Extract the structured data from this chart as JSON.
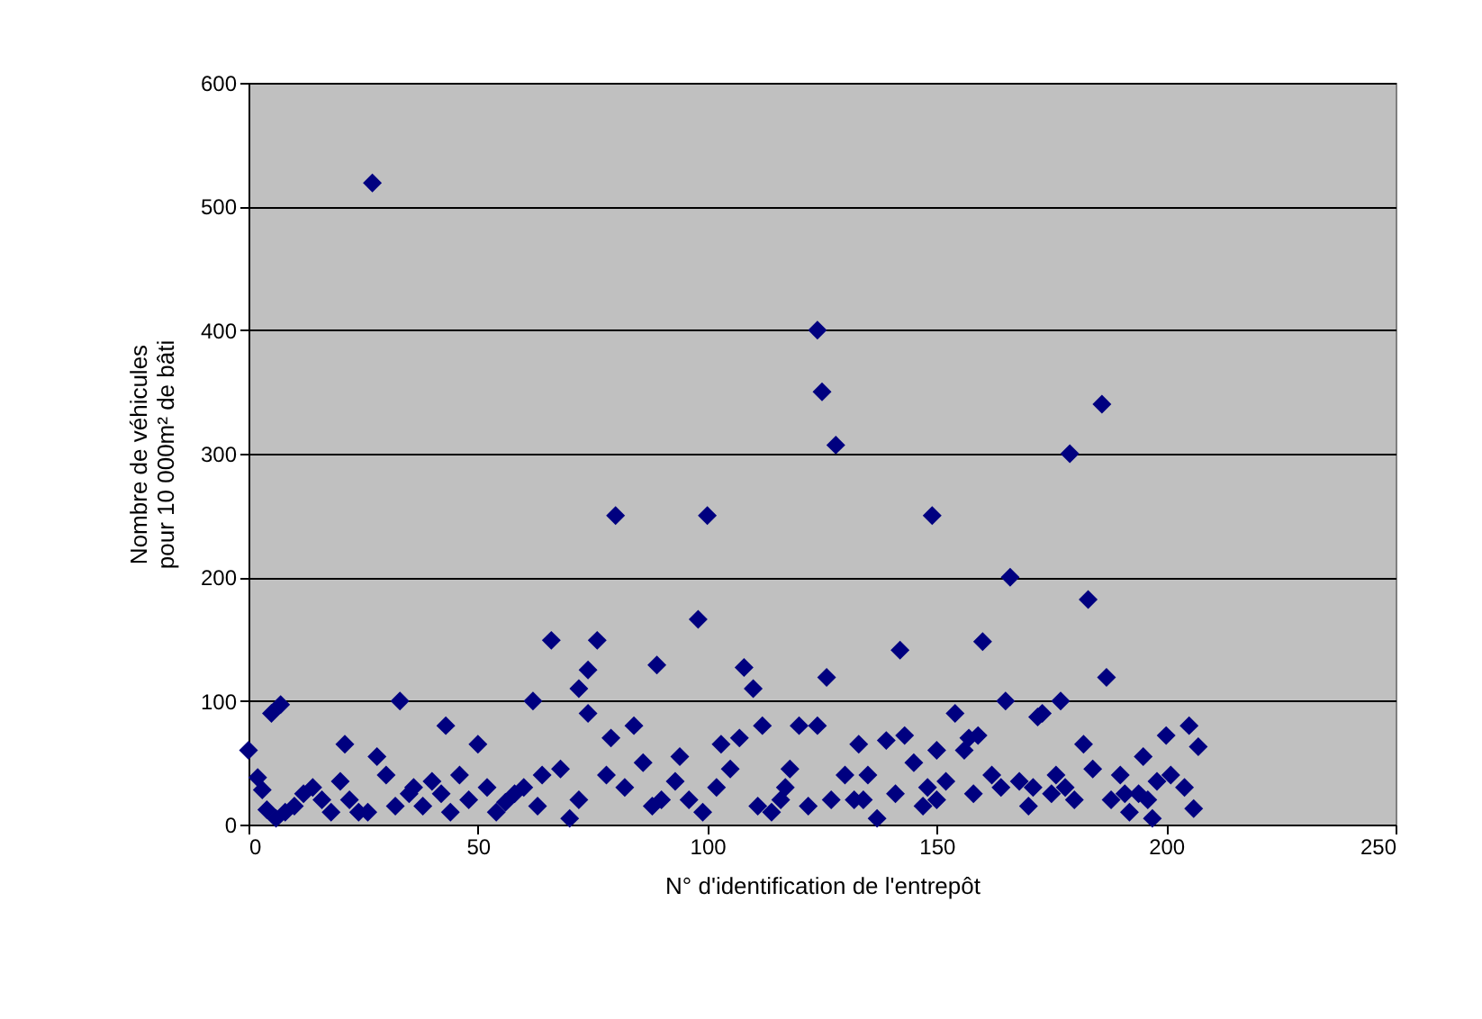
{
  "chart_data": {
    "type": "scatter",
    "xlabel": "N° d'identification de l'entrepôt",
    "ylabel": "Nombre de véhicules pour 10 000m² de bâti",
    "x": [
      27,
      80,
      100,
      124,
      125,
      128,
      149,
      166,
      179,
      186,
      183,
      98,
      142,
      160,
      66,
      76,
      74,
      108,
      89,
      126,
      187,
      72,
      110,
      7,
      5,
      33,
      62,
      165,
      177,
      43,
      84,
      120,
      124,
      172,
      112,
      0,
      2,
      3,
      21,
      50,
      103,
      133,
      139,
      143,
      157,
      159,
      195,
      200,
      205,
      207,
      201,
      204,
      206,
      24,
      30,
      36,
      42,
      46,
      52,
      56,
      60,
      64,
      68,
      70,
      78,
      79,
      82,
      86,
      90,
      93,
      96,
      102,
      105,
      107,
      114,
      116,
      118,
      122,
      130,
      134,
      137,
      141,
      145,
      147,
      152,
      154,
      156,
      162,
      164,
      168,
      170,
      173,
      175,
      180,
      182,
      184,
      188,
      190,
      192,
      194,
      197,
      198,
      10,
      12,
      14,
      16,
      18,
      20,
      22,
      26,
      28,
      32,
      35,
      38,
      40,
      44,
      48,
      54,
      58,
      63,
      72,
      74,
      88,
      94,
      99,
      111,
      117,
      127,
      132,
      135,
      150,
      158,
      171,
      176,
      178,
      191,
      196,
      150,
      148,
      8,
      6,
      4
    ],
    "series": [
      {
        "color": "#000080",
        "values": [
          519,
          250,
          250,
          400,
          350,
          307,
          250,
          200,
          300,
          340,
          182,
          166,
          141,
          148,
          149,
          149,
          125,
          127,
          129,
          119,
          119,
          110,
          110,
          97,
          90,
          100,
          100,
          100,
          100,
          80,
          80,
          80,
          80,
          87,
          80,
          60,
          38,
          28,
          65,
          65,
          65,
          65,
          68,
          72,
          70,
          72,
          55,
          72,
          80,
          63,
          40,
          30,
          13,
          10,
          40,
          30,
          25,
          40,
          30,
          18,
          30,
          40,
          45,
          5,
          40,
          70,
          30,
          50,
          20,
          35,
          20,
          30,
          45,
          70,
          10,
          20,
          45,
          15,
          40,
          20,
          5,
          25,
          50,
          15,
          35,
          90,
          60,
          40,
          30,
          35,
          15,
          90,
          25,
          20,
          65,
          45,
          20,
          40,
          10,
          25,
          5,
          35,
          15,
          25,
          30,
          20,
          10,
          35,
          20,
          10,
          55,
          15,
          25,
          15,
          35,
          10,
          20,
          10,
          25,
          15,
          20,
          90,
          15,
          55,
          10,
          15,
          30,
          20,
          20,
          40,
          20,
          25,
          30,
          40,
          30,
          25,
          20,
          60,
          30,
          10,
          5,
          12
        ]
      }
    ],
    "xlim": [
      0,
      250
    ],
    "xticks": [
      0,
      50,
      100,
      150,
      200,
      250
    ],
    "ylim": [
      0,
      600
    ],
    "yticks": [
      0,
      100,
      200,
      300,
      400,
      500,
      600
    ],
    "grid": "y",
    "marker": "diamond"
  }
}
